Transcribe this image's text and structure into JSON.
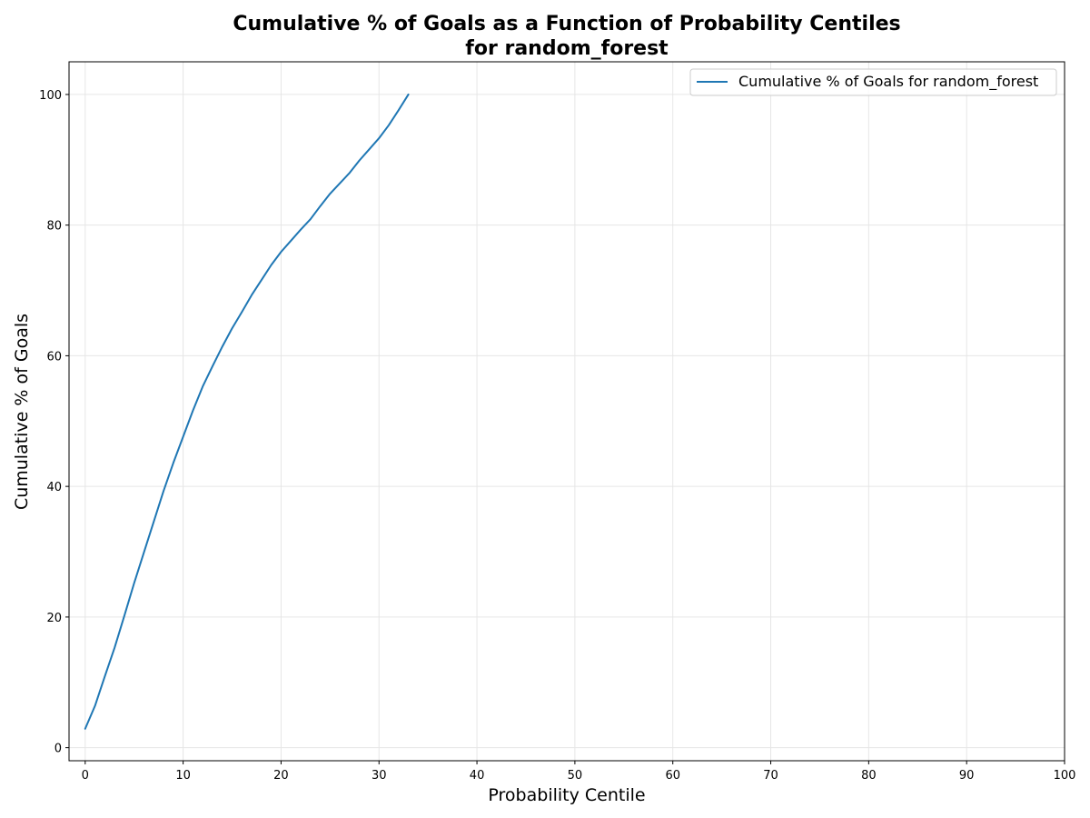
{
  "chart_data": {
    "type": "line",
    "title": "Cumulative % of Goals as a Function of Probability Centiles",
    "subtitle": "for random_forest",
    "xlabel": "Probability Centile",
    "ylabel": "Cumulative % of Goals",
    "xlim": [
      -1.65,
      100
    ],
    "ylim": [
      -2,
      105
    ],
    "xticks": [
      0,
      10,
      20,
      30,
      40,
      50,
      60,
      70,
      80,
      90,
      100
    ],
    "yticks": [
      0,
      20,
      40,
      60,
      80,
      100
    ],
    "grid": true,
    "legend_position": "upper right",
    "series": [
      {
        "name": "Cumulative % of Goals for random_forest",
        "color": "#1f77b4",
        "x": [
          0,
          1,
          2,
          3,
          4,
          5,
          6,
          7,
          8,
          9,
          10,
          11,
          12,
          13,
          14,
          15,
          16,
          17,
          18,
          19,
          20,
          21,
          22,
          23,
          24,
          25,
          26,
          27,
          28,
          29,
          30,
          31,
          32,
          33
        ],
        "y": [
          2.9,
          6.4,
          10.9,
          15.3,
          20.2,
          25.2,
          29.9,
          34.6,
          39.3,
          43.6,
          47.6,
          51.6,
          55.3,
          58.4,
          61.4,
          64.2,
          66.7,
          69.3,
          71.6,
          73.9,
          75.9,
          77.6,
          79.3,
          80.9,
          82.9,
          84.8,
          86.4,
          88.0,
          89.9,
          91.6,
          93.3,
          95.3,
          97.6,
          100.0
        ]
      }
    ]
  }
}
